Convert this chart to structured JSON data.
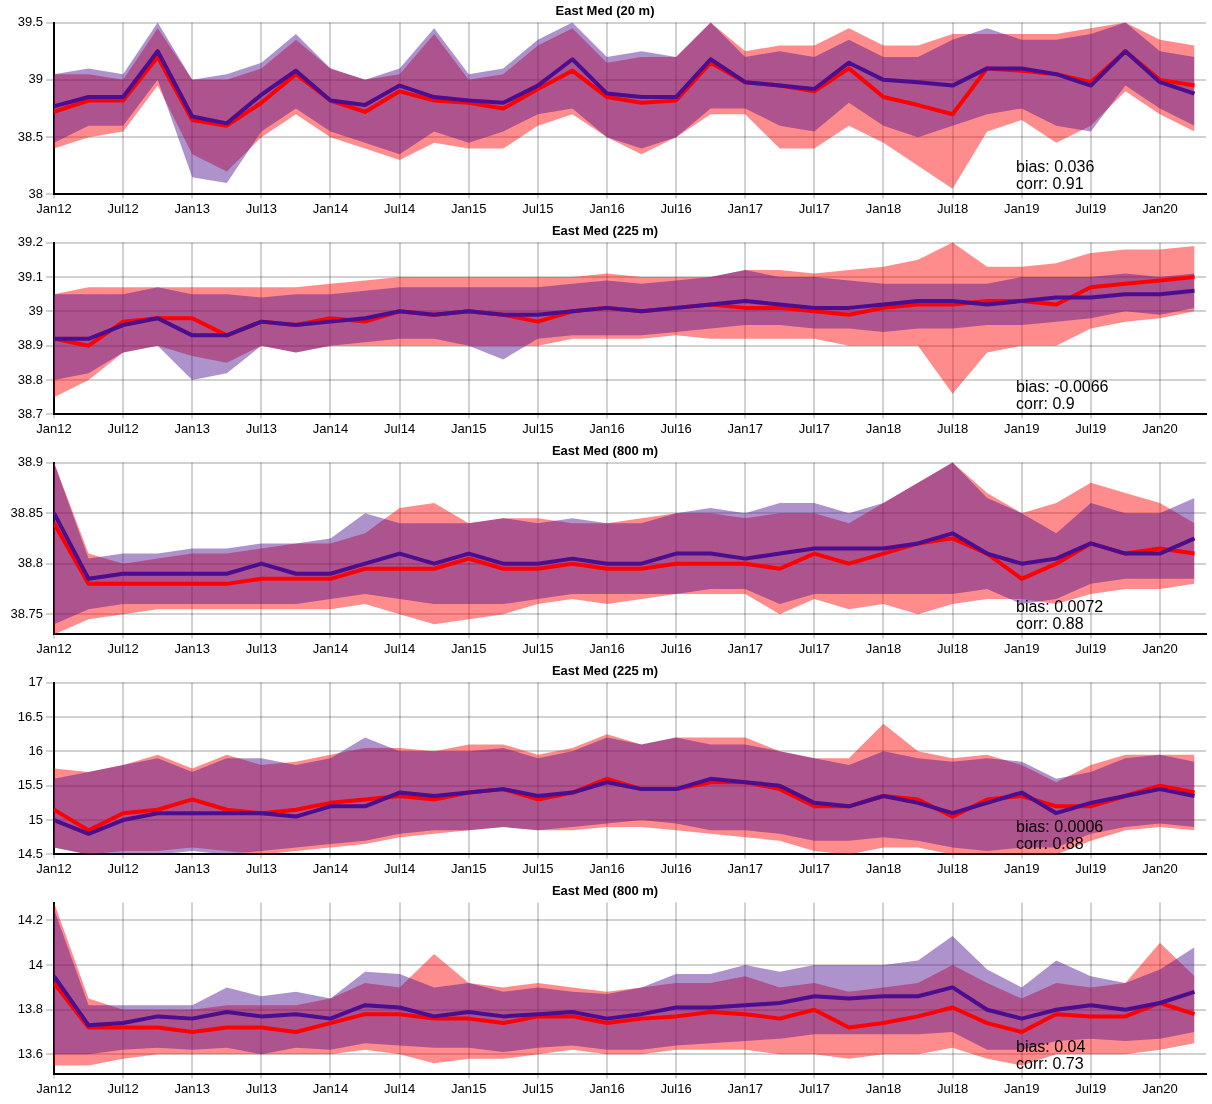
{
  "chart_data": [
    {
      "type": "line",
      "title": "East Med (20 m)",
      "grid": true,
      "legend": false,
      "x": [
        "2012-01",
        "2012-04",
        "2012-07",
        "2012-10",
        "2013-01",
        "2013-04",
        "2013-07",
        "2013-10",
        "2014-01",
        "2014-04",
        "2014-07",
        "2014-10",
        "2015-01",
        "2015-04",
        "2015-07",
        "2015-10",
        "2016-01",
        "2016-04",
        "2016-07",
        "2016-10",
        "2017-01",
        "2017-04",
        "2017-07",
        "2017-10",
        "2018-01",
        "2018-04",
        "2018-07",
        "2018-10",
        "2019-01",
        "2019-04",
        "2019-07",
        "2019-10",
        "2020-01",
        "2020-04"
      ],
      "xlim": [
        "2012-01",
        "2020-05"
      ],
      "xticks": [
        {
          "value": "2012-01",
          "label": "Jan12"
        },
        {
          "value": "2012-07",
          "label": "Jul12"
        },
        {
          "value": "2013-01",
          "label": "Jan13"
        },
        {
          "value": "2013-07",
          "label": "Jul13"
        },
        {
          "value": "2014-01",
          "label": "Jan14"
        },
        {
          "value": "2014-07",
          "label": "Jul14"
        },
        {
          "value": "2015-01",
          "label": "Jan15"
        },
        {
          "value": "2015-07",
          "label": "Jul15"
        },
        {
          "value": "2016-01",
          "label": "Jan16"
        },
        {
          "value": "2016-07",
          "label": "Jul16"
        },
        {
          "value": "2017-01",
          "label": "Jan17"
        },
        {
          "value": "2017-07",
          "label": "Jul17"
        },
        {
          "value": "2018-01",
          "label": "Jan18"
        },
        {
          "value": "2018-07",
          "label": "Jul18"
        },
        {
          "value": "2019-01",
          "label": "Jan19"
        },
        {
          "value": "2019-07",
          "label": "Jul19"
        },
        {
          "value": "2020-01",
          "label": "Jan20"
        }
      ],
      "ylim": [
        38,
        39.5
      ],
      "yticks": [
        38,
        38.5,
        39,
        39.5
      ],
      "annotations": [
        "bias: 0.036",
        "corr: 0.91"
      ],
      "series": [
        {
          "color": "#4a0e8f",
          "values": [
            38.77,
            38.85,
            38.85,
            39.25,
            38.68,
            38.62,
            38.87,
            39.08,
            38.82,
            38.78,
            38.95,
            38.85,
            38.82,
            38.8,
            38.95,
            39.18,
            38.88,
            38.85,
            38.85,
            39.18,
            38.98,
            38.95,
            38.92,
            39.15,
            39.0,
            38.98,
            38.95,
            39.1,
            39.1,
            39.05,
            38.95,
            39.25,
            38.98,
            38.88
          ],
          "lower": [
            38.45,
            38.6,
            38.6,
            39.0,
            38.15,
            38.1,
            38.55,
            38.75,
            38.55,
            38.45,
            38.35,
            38.55,
            38.45,
            38.55,
            38.7,
            38.75,
            38.5,
            38.4,
            38.5,
            38.75,
            38.75,
            38.6,
            38.55,
            38.8,
            38.6,
            38.5,
            38.6,
            38.7,
            38.75,
            38.6,
            38.55,
            38.95,
            38.75,
            38.6
          ],
          "upper": [
            39.05,
            39.1,
            39.05,
            39.5,
            39.0,
            39.05,
            39.15,
            39.4,
            39.1,
            39.0,
            39.1,
            39.45,
            39.05,
            39.1,
            39.35,
            39.5,
            39.2,
            39.25,
            39.2,
            39.5,
            39.2,
            39.25,
            39.2,
            39.35,
            39.2,
            39.2,
            39.35,
            39.45,
            39.35,
            39.35,
            39.4,
            39.5,
            39.25,
            39.2
          ]
        },
        {
          "color": "#ff0000",
          "values": [
            38.72,
            38.82,
            38.82,
            39.2,
            38.65,
            38.6,
            38.8,
            39.05,
            38.82,
            38.72,
            38.9,
            38.82,
            38.8,
            38.75,
            38.92,
            39.08,
            38.85,
            38.8,
            38.82,
            39.15,
            38.98,
            38.95,
            38.9,
            39.1,
            38.85,
            38.78,
            38.7,
            39.1,
            39.08,
            39.05,
            38.98,
            39.25,
            39.0,
            38.95
          ],
          "lower": [
            38.4,
            38.5,
            38.55,
            38.95,
            38.35,
            38.2,
            38.5,
            38.7,
            38.5,
            38.4,
            38.3,
            38.45,
            38.4,
            38.4,
            38.6,
            38.7,
            38.5,
            38.35,
            38.5,
            38.7,
            38.7,
            38.4,
            38.4,
            38.6,
            38.45,
            38.25,
            38.05,
            38.55,
            38.65,
            38.45,
            38.6,
            38.9,
            38.7,
            38.55
          ],
          "upper": [
            39.05,
            39.05,
            39.0,
            39.45,
            39.0,
            39.0,
            39.1,
            39.35,
            39.1,
            39.0,
            39.05,
            39.4,
            39.0,
            39.05,
            39.3,
            39.45,
            39.15,
            39.2,
            39.2,
            39.5,
            39.25,
            39.3,
            39.3,
            39.45,
            39.3,
            39.3,
            39.4,
            39.4,
            39.4,
            39.4,
            39.45,
            39.5,
            39.35,
            39.3
          ]
        }
      ]
    },
    {
      "type": "line",
      "title": "East Med (225 m)",
      "grid": true,
      "legend": false,
      "x": [
        "2012-01",
        "2012-04",
        "2012-07",
        "2012-10",
        "2013-01",
        "2013-04",
        "2013-07",
        "2013-10",
        "2014-01",
        "2014-04",
        "2014-07",
        "2014-10",
        "2015-01",
        "2015-04",
        "2015-07",
        "2015-10",
        "2016-01",
        "2016-04",
        "2016-07",
        "2016-10",
        "2017-01",
        "2017-04",
        "2017-07",
        "2017-10",
        "2018-01",
        "2018-04",
        "2018-07",
        "2018-10",
        "2019-01",
        "2019-04",
        "2019-07",
        "2019-10",
        "2020-01",
        "2020-04"
      ],
      "xlim": [
        "2012-01",
        "2020-05"
      ],
      "xticks": [
        {
          "value": "2012-01",
          "label": "Jan12"
        },
        {
          "value": "2012-07",
          "label": "Jul12"
        },
        {
          "value": "2013-01",
          "label": "Jan13"
        },
        {
          "value": "2013-07",
          "label": "Jul13"
        },
        {
          "value": "2014-01",
          "label": "Jan14"
        },
        {
          "value": "2014-07",
          "label": "Jul14"
        },
        {
          "value": "2015-01",
          "label": "Jan15"
        },
        {
          "value": "2015-07",
          "label": "Jul15"
        },
        {
          "value": "2016-01",
          "label": "Jan16"
        },
        {
          "value": "2016-07",
          "label": "Jul16"
        },
        {
          "value": "2017-01",
          "label": "Jan17"
        },
        {
          "value": "2017-07",
          "label": "Jul17"
        },
        {
          "value": "2018-01",
          "label": "Jan18"
        },
        {
          "value": "2018-07",
          "label": "Jul18"
        },
        {
          "value": "2019-01",
          "label": "Jan19"
        },
        {
          "value": "2019-07",
          "label": "Jul19"
        },
        {
          "value": "2020-01",
          "label": "Jan20"
        }
      ],
      "ylim": [
        38.7,
        39.2
      ],
      "yticks": [
        38.7,
        38.8,
        38.9,
        39,
        39.1,
        39.2
      ],
      "annotations": [
        "bias: -0.0066",
        "corr: 0.9"
      ],
      "series": [
        {
          "color": "#4a0e8f",
          "values": [
            38.92,
            38.92,
            38.96,
            38.98,
            38.93,
            38.93,
            38.97,
            38.96,
            38.97,
            38.98,
            39.0,
            38.99,
            39.0,
            38.99,
            38.99,
            39.0,
            39.01,
            39.0,
            39.01,
            39.02,
            39.03,
            39.02,
            39.01,
            39.01,
            39.02,
            39.03,
            39.03,
            39.02,
            39.03,
            39.04,
            39.04,
            39.05,
            39.05,
            39.06
          ],
          "lower": [
            38.8,
            38.82,
            38.88,
            38.9,
            38.8,
            38.82,
            38.9,
            38.88,
            38.9,
            38.91,
            38.92,
            38.92,
            38.9,
            38.86,
            38.92,
            38.93,
            38.93,
            38.93,
            38.94,
            38.95,
            38.96,
            38.96,
            38.95,
            38.95,
            38.94,
            38.95,
            38.95,
            38.96,
            38.96,
            38.97,
            38.98,
            39.0,
            38.99,
            39.01
          ],
          "upper": [
            39.05,
            39.05,
            39.05,
            39.07,
            39.05,
            39.05,
            39.04,
            39.05,
            39.05,
            39.06,
            39.07,
            39.07,
            39.07,
            39.07,
            39.07,
            39.08,
            39.09,
            39.08,
            39.09,
            39.1,
            39.12,
            39.1,
            39.1,
            39.09,
            39.08,
            39.08,
            39.08,
            39.08,
            39.1,
            39.1,
            39.1,
            39.11,
            39.1,
            39.11
          ]
        },
        {
          "color": "#ff0000",
          "values": [
            38.92,
            38.9,
            38.97,
            38.98,
            38.98,
            38.93,
            38.97,
            38.96,
            38.98,
            38.97,
            39.0,
            38.99,
            39.0,
            38.99,
            38.97,
            39.0,
            39.01,
            39.0,
            39.01,
            39.02,
            39.01,
            39.01,
            39.0,
            38.99,
            39.01,
            39.02,
            39.02,
            39.03,
            39.03,
            39.02,
            39.07,
            39.08,
            39.09,
            39.1
          ],
          "lower": [
            38.75,
            38.8,
            38.88,
            38.9,
            38.87,
            38.85,
            38.9,
            38.88,
            38.9,
            38.9,
            38.9,
            38.9,
            38.9,
            38.9,
            38.9,
            38.92,
            38.92,
            38.92,
            38.93,
            38.92,
            38.92,
            38.92,
            38.92,
            38.9,
            38.9,
            38.9,
            38.76,
            38.88,
            38.9,
            38.9,
            38.95,
            38.97,
            38.98,
            39.0
          ],
          "upper": [
            39.05,
            39.07,
            39.07,
            39.07,
            39.07,
            39.07,
            39.07,
            39.07,
            39.08,
            39.09,
            39.1,
            39.1,
            39.1,
            39.1,
            39.1,
            39.1,
            39.11,
            39.1,
            39.1,
            39.1,
            39.12,
            39.12,
            39.11,
            39.12,
            39.13,
            39.15,
            39.2,
            39.13,
            39.13,
            39.14,
            39.17,
            39.18,
            39.18,
            39.19
          ]
        }
      ]
    },
    {
      "type": "line",
      "title": "East Med (800 m)",
      "grid": true,
      "legend": false,
      "x": [
        "2012-01",
        "2012-04",
        "2012-07",
        "2012-10",
        "2013-01",
        "2013-04",
        "2013-07",
        "2013-10",
        "2014-01",
        "2014-04",
        "2014-07",
        "2014-10",
        "2015-01",
        "2015-04",
        "2015-07",
        "2015-10",
        "2016-01",
        "2016-04",
        "2016-07",
        "2016-10",
        "2017-01",
        "2017-04",
        "2017-07",
        "2017-10",
        "2018-01",
        "2018-04",
        "2018-07",
        "2018-10",
        "2019-01",
        "2019-04",
        "2019-07",
        "2019-10",
        "2020-01",
        "2020-04"
      ],
      "xlim": [
        "2012-01",
        "2020-05"
      ],
      "xticks": [
        {
          "value": "2012-01",
          "label": "Jan12"
        },
        {
          "value": "2012-07",
          "label": "Jul12"
        },
        {
          "value": "2013-01",
          "label": "Jan13"
        },
        {
          "value": "2013-07",
          "label": "Jul13"
        },
        {
          "value": "2014-01",
          "label": "Jan14"
        },
        {
          "value": "2014-07",
          "label": "Jul14"
        },
        {
          "value": "2015-01",
          "label": "Jan15"
        },
        {
          "value": "2015-07",
          "label": "Jul15"
        },
        {
          "value": "2016-01",
          "label": "Jan16"
        },
        {
          "value": "2016-07",
          "label": "Jul16"
        },
        {
          "value": "2017-01",
          "label": "Jan17"
        },
        {
          "value": "2017-07",
          "label": "Jul17"
        },
        {
          "value": "2018-01",
          "label": "Jan18"
        },
        {
          "value": "2018-07",
          "label": "Jul18"
        },
        {
          "value": "2019-01",
          "label": "Jan19"
        },
        {
          "value": "2019-07",
          "label": "Jul19"
        },
        {
          "value": "2020-01",
          "label": "Jan20"
        }
      ],
      "ylim": [
        38.73,
        38.9
      ],
      "yticks": [
        38.75,
        38.8,
        38.85,
        38.9
      ],
      "annotations": [
        "bias: 0.0072",
        "corr: 0.88"
      ],
      "series": [
        {
          "color": "#4a0e8f",
          "values": [
            38.85,
            38.785,
            38.79,
            38.79,
            38.79,
            38.79,
            38.8,
            38.79,
            38.79,
            38.8,
            38.81,
            38.8,
            38.81,
            38.8,
            38.8,
            38.805,
            38.8,
            38.8,
            38.81,
            38.81,
            38.805,
            38.81,
            38.815,
            38.815,
            38.815,
            38.82,
            38.83,
            38.81,
            38.8,
            38.805,
            38.82,
            38.81,
            38.81,
            38.825
          ],
          "lower": [
            38.74,
            38.755,
            38.76,
            38.76,
            38.76,
            38.76,
            38.76,
            38.76,
            38.765,
            38.77,
            38.765,
            38.76,
            38.76,
            38.76,
            38.765,
            38.77,
            38.77,
            38.77,
            38.77,
            38.775,
            38.775,
            38.76,
            38.77,
            38.77,
            38.77,
            38.77,
            38.77,
            38.775,
            38.76,
            38.765,
            38.78,
            38.785,
            38.785,
            38.785
          ],
          "upper": [
            38.9,
            38.805,
            38.81,
            38.81,
            38.815,
            38.815,
            38.82,
            38.82,
            38.825,
            38.85,
            38.84,
            38.84,
            38.84,
            38.845,
            38.84,
            38.845,
            38.84,
            38.84,
            38.85,
            38.855,
            38.85,
            38.86,
            38.86,
            38.85,
            38.86,
            38.88,
            38.9,
            38.865,
            38.85,
            38.83,
            38.86,
            38.85,
            38.85,
            38.865
          ]
        },
        {
          "color": "#ff0000",
          "values": [
            38.84,
            38.78,
            38.78,
            38.78,
            38.78,
            38.78,
            38.785,
            38.785,
            38.785,
            38.795,
            38.795,
            38.795,
            38.805,
            38.795,
            38.795,
            38.8,
            38.795,
            38.795,
            38.8,
            38.8,
            38.8,
            38.795,
            38.81,
            38.8,
            38.81,
            38.82,
            38.825,
            38.81,
            38.785,
            38.8,
            38.82,
            38.81,
            38.815,
            38.81
          ],
          "lower": [
            38.73,
            38.745,
            38.75,
            38.755,
            38.755,
            38.755,
            38.755,
            38.755,
            38.755,
            38.76,
            38.75,
            38.74,
            38.745,
            38.75,
            38.76,
            38.765,
            38.76,
            38.765,
            38.77,
            38.77,
            38.77,
            38.75,
            38.765,
            38.755,
            38.76,
            38.75,
            38.76,
            38.765,
            38.765,
            38.76,
            38.77,
            38.775,
            38.775,
            38.78
          ],
          "upper": [
            38.9,
            38.81,
            38.8,
            38.805,
            38.81,
            38.81,
            38.815,
            38.82,
            38.82,
            38.83,
            38.855,
            38.86,
            38.84,
            38.845,
            38.845,
            38.84,
            38.84,
            38.845,
            38.85,
            38.85,
            38.845,
            38.85,
            38.85,
            38.84,
            38.86,
            38.88,
            38.9,
            38.87,
            38.85,
            38.86,
            38.88,
            38.87,
            38.86,
            38.84
          ]
        }
      ]
    },
    {
      "type": "line",
      "title": "East Med (225 m)",
      "grid": true,
      "legend": false,
      "x": [
        "2012-01",
        "2012-04",
        "2012-07",
        "2012-10",
        "2013-01",
        "2013-04",
        "2013-07",
        "2013-10",
        "2014-01",
        "2014-04",
        "2014-07",
        "2014-10",
        "2015-01",
        "2015-04",
        "2015-07",
        "2015-10",
        "2016-01",
        "2016-04",
        "2016-07",
        "2016-10",
        "2017-01",
        "2017-04",
        "2017-07",
        "2017-10",
        "2018-01",
        "2018-04",
        "2018-07",
        "2018-10",
        "2019-01",
        "2019-04",
        "2019-07",
        "2019-10",
        "2020-01",
        "2020-04"
      ],
      "xlim": [
        "2012-01",
        "2020-05"
      ],
      "xticks": [
        {
          "value": "2012-01",
          "label": "Jan12"
        },
        {
          "value": "2012-07",
          "label": "Jul12"
        },
        {
          "value": "2013-01",
          "label": "Jan13"
        },
        {
          "value": "2013-07",
          "label": "Jul13"
        },
        {
          "value": "2014-01",
          "label": "Jan14"
        },
        {
          "value": "2014-07",
          "label": "Jul14"
        },
        {
          "value": "2015-01",
          "label": "Jan15"
        },
        {
          "value": "2015-07",
          "label": "Jul15"
        },
        {
          "value": "2016-01",
          "label": "Jan16"
        },
        {
          "value": "2016-07",
          "label": "Jul16"
        },
        {
          "value": "2017-01",
          "label": "Jan17"
        },
        {
          "value": "2017-07",
          "label": "Jul17"
        },
        {
          "value": "2018-01",
          "label": "Jan18"
        },
        {
          "value": "2018-07",
          "label": "Jul18"
        },
        {
          "value": "2019-01",
          "label": "Jan19"
        },
        {
          "value": "2019-07",
          "label": "Jul19"
        },
        {
          "value": "2020-01",
          "label": "Jan20"
        }
      ],
      "ylim": [
        14.5,
        17
      ],
      "yticks": [
        14.5,
        15,
        15.5,
        16,
        16.5,
        17
      ],
      "annotations": [
        "bias: 0.0006",
        "corr: 0.88"
      ],
      "series": [
        {
          "color": "#4a0e8f",
          "values": [
            15.0,
            14.8,
            15.0,
            15.1,
            15.1,
            15.1,
            15.1,
            15.05,
            15.2,
            15.2,
            15.4,
            15.35,
            15.4,
            15.45,
            15.35,
            15.4,
            15.55,
            15.45,
            15.45,
            15.6,
            15.55,
            15.5,
            15.25,
            15.2,
            15.35,
            15.25,
            15.1,
            15.25,
            15.4,
            15.1,
            15.25,
            15.35,
            15.45,
            15.35
          ],
          "lower": [
            14.6,
            14.5,
            14.5,
            14.5,
            14.55,
            14.5,
            14.55,
            14.6,
            14.65,
            14.7,
            14.8,
            14.85,
            14.85,
            14.9,
            14.85,
            14.9,
            14.95,
            15.0,
            14.95,
            14.85,
            14.85,
            14.8,
            14.7,
            14.7,
            14.75,
            14.7,
            14.6,
            14.55,
            14.6,
            14.6,
            14.8,
            14.9,
            14.95,
            14.9
          ],
          "upper": [
            15.6,
            15.7,
            15.8,
            15.9,
            15.7,
            15.9,
            15.9,
            15.8,
            15.9,
            16.2,
            16.0,
            16.0,
            16.0,
            16.05,
            15.9,
            16.0,
            16.2,
            16.1,
            16.2,
            16.1,
            16.1,
            16.0,
            15.9,
            15.8,
            16.0,
            15.9,
            15.85,
            15.9,
            15.85,
            15.6,
            15.7,
            15.9,
            15.95,
            15.85
          ]
        },
        {
          "color": "#ff0000",
          "values": [
            15.15,
            14.85,
            15.1,
            15.15,
            15.3,
            15.15,
            15.1,
            15.15,
            15.25,
            15.3,
            15.35,
            15.3,
            15.4,
            15.45,
            15.3,
            15.4,
            15.6,
            15.45,
            15.45,
            15.55,
            15.55,
            15.45,
            15.2,
            15.2,
            15.35,
            15.3,
            15.05,
            15.3,
            15.35,
            15.2,
            15.2,
            15.35,
            15.5,
            15.4
          ],
          "lower": [
            14.6,
            14.5,
            14.55,
            14.55,
            14.6,
            14.55,
            14.5,
            14.55,
            14.6,
            14.65,
            14.75,
            14.8,
            14.85,
            14.9,
            14.85,
            14.85,
            14.9,
            14.9,
            14.85,
            14.8,
            14.75,
            14.7,
            14.55,
            14.5,
            14.6,
            14.6,
            14.5,
            14.5,
            14.5,
            14.5,
            14.7,
            14.85,
            14.9,
            14.85
          ],
          "upper": [
            15.75,
            15.7,
            15.8,
            15.95,
            15.75,
            15.95,
            15.8,
            15.85,
            15.95,
            16.05,
            16.05,
            16.0,
            16.1,
            16.1,
            15.95,
            16.05,
            16.25,
            16.1,
            16.2,
            16.2,
            16.2,
            16.0,
            15.9,
            15.9,
            16.4,
            16.0,
            15.9,
            15.95,
            15.8,
            15.55,
            15.8,
            15.95,
            15.95,
            15.95
          ]
        }
      ]
    },
    {
      "type": "line",
      "title": "East Med (800 m)",
      "grid": true,
      "legend": false,
      "x": [
        "2012-01",
        "2012-04",
        "2012-07",
        "2012-10",
        "2013-01",
        "2013-04",
        "2013-07",
        "2013-10",
        "2014-01",
        "2014-04",
        "2014-07",
        "2014-10",
        "2015-01",
        "2015-04",
        "2015-07",
        "2015-10",
        "2016-01",
        "2016-04",
        "2016-07",
        "2016-10",
        "2017-01",
        "2017-04",
        "2017-07",
        "2017-10",
        "2018-01",
        "2018-04",
        "2018-07",
        "2018-10",
        "2019-01",
        "2019-04",
        "2019-07",
        "2019-10",
        "2020-01",
        "2020-04"
      ],
      "xlim": [
        "2012-01",
        "2020-05"
      ],
      "xticks": [
        {
          "value": "2012-01",
          "label": "Jan12"
        },
        {
          "value": "2012-07",
          "label": "Jul12"
        },
        {
          "value": "2013-01",
          "label": "Jan13"
        },
        {
          "value": "2013-07",
          "label": "Jul13"
        },
        {
          "value": "2014-01",
          "label": "Jan14"
        },
        {
          "value": "2014-07",
          "label": "Jul14"
        },
        {
          "value": "2015-01",
          "label": "Jan15"
        },
        {
          "value": "2015-07",
          "label": "Jul15"
        },
        {
          "value": "2016-01",
          "label": "Jan16"
        },
        {
          "value": "2016-07",
          "label": "Jul16"
        },
        {
          "value": "2017-01",
          "label": "Jan17"
        },
        {
          "value": "2017-07",
          "label": "Jul17"
        },
        {
          "value": "2018-01",
          "label": "Jan18"
        },
        {
          "value": "2018-07",
          "label": "Jul18"
        },
        {
          "value": "2019-01",
          "label": "Jan19"
        },
        {
          "value": "2019-07",
          "label": "Jul19"
        },
        {
          "value": "2020-01",
          "label": "Jan20"
        }
      ],
      "ylim": [
        13.51,
        14.28
      ],
      "yticks": [
        13.6,
        13.8,
        14,
        14.2
      ],
      "annotations": [
        "bias: 0.04",
        "corr: 0.73"
      ],
      "series": [
        {
          "color": "#4a0e8f",
          "values": [
            13.95,
            13.73,
            13.74,
            13.77,
            13.76,
            13.79,
            13.77,
            13.78,
            13.76,
            13.82,
            13.81,
            13.77,
            13.79,
            13.77,
            13.78,
            13.79,
            13.76,
            13.78,
            13.81,
            13.81,
            13.82,
            13.83,
            13.86,
            13.85,
            13.86,
            13.86,
            13.9,
            13.8,
            13.76,
            13.8,
            13.82,
            13.8,
            13.83,
            13.88
          ],
          "lower": [
            13.6,
            13.6,
            13.62,
            13.63,
            13.62,
            13.63,
            13.6,
            13.63,
            13.62,
            13.65,
            13.64,
            13.63,
            13.63,
            13.61,
            13.63,
            13.64,
            13.62,
            13.62,
            13.64,
            13.65,
            13.66,
            13.67,
            13.69,
            13.69,
            13.69,
            13.69,
            13.7,
            13.62,
            13.62,
            13.66,
            13.67,
            13.66,
            13.67,
            13.7
          ],
          "upper": [
            14.25,
            13.82,
            13.82,
            13.82,
            13.82,
            13.9,
            13.86,
            13.88,
            13.85,
            13.97,
            13.96,
            13.9,
            13.92,
            13.88,
            13.9,
            13.88,
            13.87,
            13.9,
            13.96,
            13.96,
            14.0,
            13.97,
            14.0,
            14.0,
            14.0,
            14.02,
            14.13,
            13.98,
            13.9,
            14.02,
            13.95,
            13.92,
            13.98,
            14.08
          ]
        },
        {
          "color": "#ff0000",
          "values": [
            13.92,
            13.72,
            13.72,
            13.72,
            13.7,
            13.72,
            13.72,
            13.7,
            13.74,
            13.78,
            13.78,
            13.76,
            13.76,
            13.74,
            13.77,
            13.77,
            13.74,
            13.76,
            13.77,
            13.79,
            13.78,
            13.76,
            13.8,
            13.72,
            13.74,
            13.77,
            13.81,
            13.74,
            13.7,
            13.78,
            13.77,
            13.77,
            13.83,
            13.78
          ],
          "lower": [
            13.55,
            13.55,
            13.58,
            13.6,
            13.6,
            13.6,
            13.6,
            13.6,
            13.6,
            13.62,
            13.6,
            13.56,
            13.58,
            13.58,
            13.6,
            13.62,
            13.6,
            13.6,
            13.62,
            13.62,
            13.62,
            13.6,
            13.6,
            13.58,
            13.6,
            13.6,
            13.63,
            13.58,
            13.55,
            13.6,
            13.6,
            13.6,
            13.62,
            13.65
          ],
          "upper": [
            14.28,
            13.85,
            13.8,
            13.8,
            13.8,
            13.82,
            13.82,
            13.82,
            13.85,
            13.92,
            13.9,
            14.05,
            13.92,
            13.9,
            13.92,
            13.9,
            13.88,
            13.9,
            13.92,
            13.92,
            13.95,
            13.9,
            13.92,
            13.88,
            13.9,
            13.92,
            14.0,
            13.92,
            13.85,
            13.92,
            13.9,
            13.92,
            14.1,
            13.95
          ]
        }
      ]
    }
  ]
}
